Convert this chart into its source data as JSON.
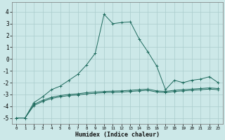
{
  "xlabel": "Humidex (Indice chaleur)",
  "xlim": [
    -0.5,
    23.5
  ],
  "ylim": [
    -5.5,
    4.8
  ],
  "yticks": [
    -5,
    -4,
    -3,
    -2,
    -1,
    0,
    1,
    2,
    3,
    4
  ],
  "xticks": [
    0,
    1,
    2,
    3,
    4,
    5,
    6,
    7,
    8,
    9,
    10,
    11,
    12,
    13,
    14,
    15,
    16,
    17,
    18,
    19,
    20,
    21,
    22,
    23
  ],
  "bg_color": "#cce8e8",
  "grid_color": "#aacccc",
  "line_color": "#1f6b5e",
  "lines": [
    {
      "x": [
        0,
        1,
        2,
        3,
        4,
        5,
        6,
        7,
        8,
        9,
        10,
        11,
        12,
        13,
        14,
        15,
        16,
        17,
        18,
        19,
        20,
        21,
        22,
        23
      ],
      "y": [
        -5.0,
        -5.0,
        -3.7,
        -3.2,
        -2.6,
        -2.3,
        -1.8,
        -1.3,
        -0.5,
        0.5,
        3.8,
        3.0,
        3.1,
        3.15,
        1.7,
        0.6,
        -0.6,
        -2.6,
        -1.8,
        -2.0,
        -1.8,
        -1.7,
        -1.5,
        -2.0
      ],
      "marker": "+"
    },
    {
      "x": [
        0,
        1,
        2,
        3,
        4,
        5,
        6,
        7,
        8,
        9,
        10,
        11,
        12,
        13,
        14,
        15,
        16,
        17,
        18,
        19,
        20,
        21,
        22,
        23
      ],
      "y": [
        -5.0,
        -5.0,
        -3.85,
        -3.5,
        -3.25,
        -3.1,
        -3.0,
        -2.95,
        -2.85,
        -2.8,
        -2.75,
        -2.72,
        -2.7,
        -2.65,
        -2.6,
        -2.55,
        -2.7,
        -2.75,
        -2.65,
        -2.6,
        -2.55,
        -2.5,
        -2.45,
        -2.5
      ],
      "marker": "+"
    },
    {
      "x": [
        0,
        1,
        2,
        3,
        4,
        5,
        6,
        7,
        8,
        9,
        10,
        11,
        12,
        13,
        14,
        15,
        16,
        17,
        18,
        19,
        20,
        21,
        22,
        23
      ],
      "y": [
        -5.0,
        -5.0,
        -3.95,
        -3.6,
        -3.35,
        -3.2,
        -3.1,
        -3.05,
        -2.95,
        -2.9,
        -2.85,
        -2.82,
        -2.8,
        -2.75,
        -2.7,
        -2.65,
        -2.8,
        -2.85,
        -2.75,
        -2.7,
        -2.65,
        -2.6,
        -2.55,
        -2.6
      ],
      "marker": "+"
    }
  ]
}
